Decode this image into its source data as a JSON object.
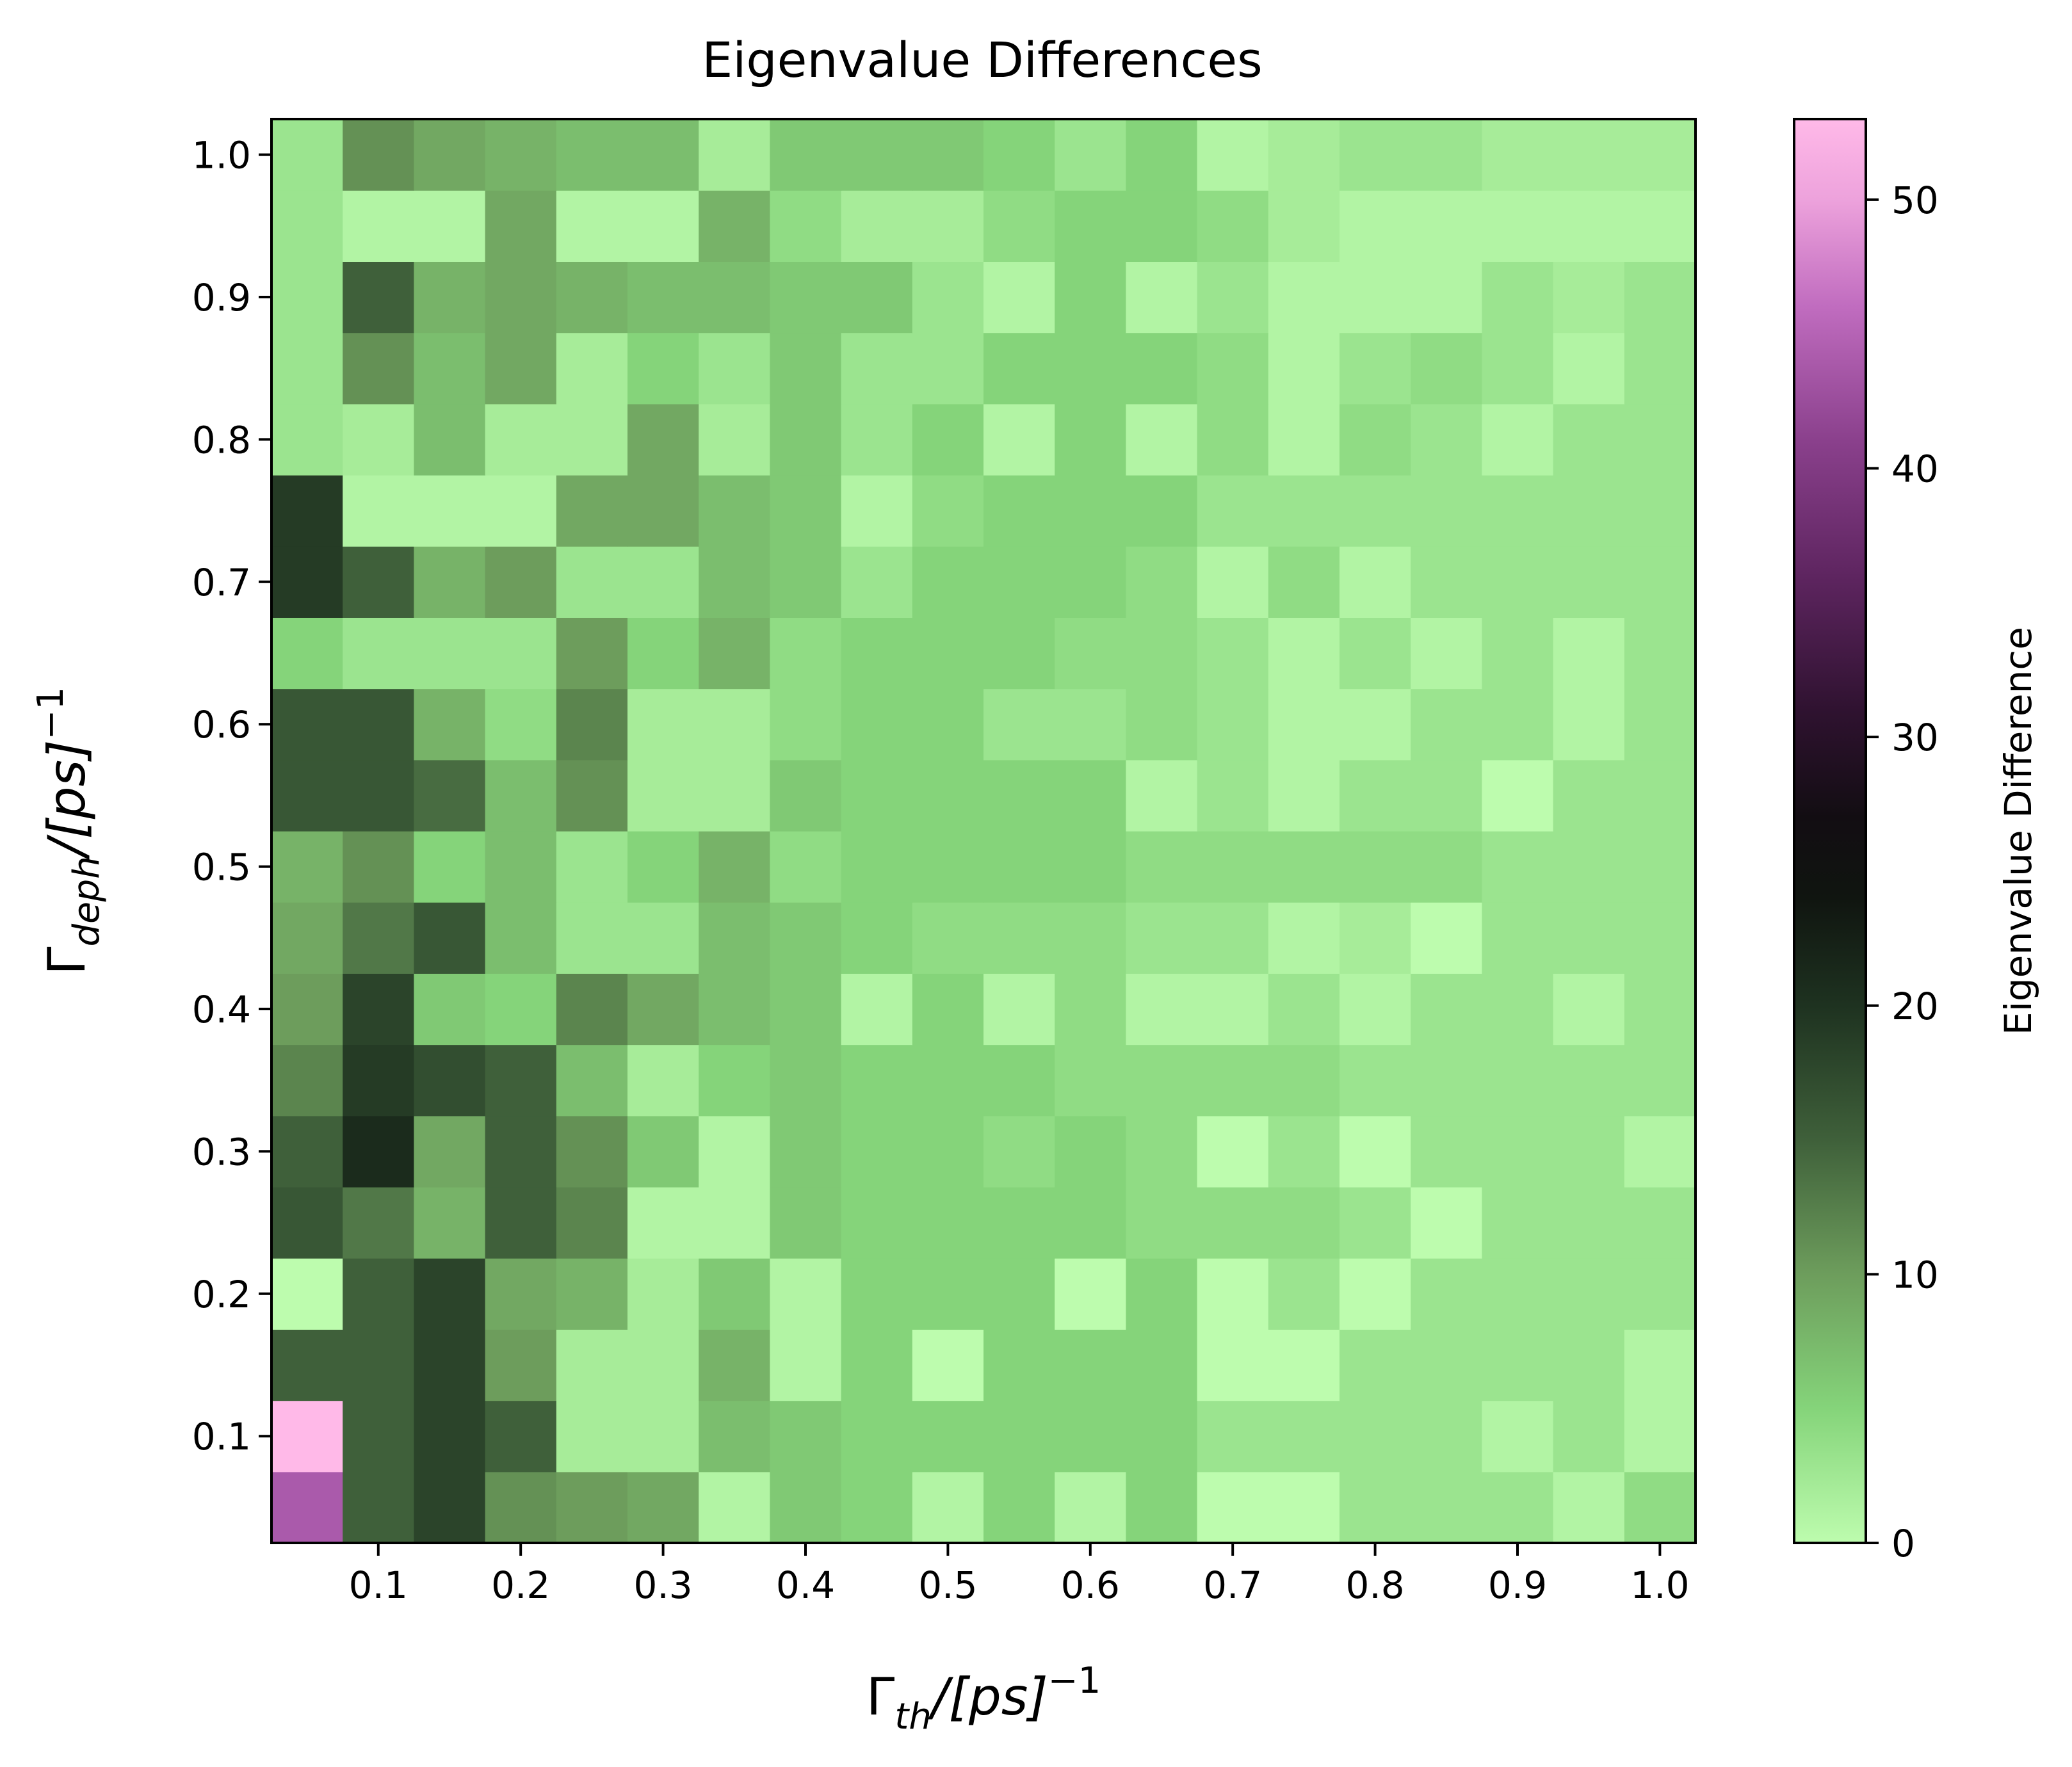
{
  "chart_data": {
    "type": "heatmap",
    "title": "Eigenvalue Differences",
    "xlabel": {
      "base": "Γ",
      "sub": "th",
      "tail": "/[ps]",
      "sup": "−1"
    },
    "ylabel": {
      "base": "Γ",
      "sub": "deph",
      "tail": "/[ps]",
      "sup": "−1"
    },
    "x_ticks": [
      "0.1",
      "0.2",
      "0.3",
      "0.4",
      "0.5",
      "0.6",
      "0.7",
      "0.8",
      "0.9",
      "1.0"
    ],
    "y_ticks": [
      "0.1",
      "0.2",
      "0.3",
      "0.4",
      "0.5",
      "0.6",
      "0.7",
      "0.8",
      "0.9",
      "1.0"
    ],
    "x_centers": [
      0.05,
      0.1,
      0.15,
      0.2,
      0.25,
      0.3,
      0.35,
      0.4,
      0.45,
      0.5,
      0.55,
      0.6,
      0.65,
      0.7,
      0.75,
      0.8,
      0.85,
      0.9,
      0.95,
      1.0
    ],
    "y_centers": [
      0.05,
      0.1,
      0.15,
      0.2,
      0.25,
      0.3,
      0.35,
      0.4,
      0.45,
      0.5,
      0.55,
      0.6,
      0.65,
      0.7,
      0.75,
      0.8,
      0.85,
      0.9,
      0.95,
      1.0
    ],
    "xlim": [
      0.025,
      1.025
    ],
    "ylim": [
      0.025,
      1.025
    ],
    "colorbar": {
      "label": "Eigenvalue Difference",
      "min": 0,
      "max": 53,
      "ticks": [
        "0",
        "10",
        "20",
        "30",
        "40",
        "50"
      ],
      "tick_values": [
        0,
        10,
        20,
        30,
        40,
        50
      ],
      "colormap_stops": [
        {
          "v": 0,
          "color": "#bdfcae"
        },
        {
          "v": 5,
          "color": "#85d47a"
        },
        {
          "v": 10,
          "color": "#6d9d5c"
        },
        {
          "v": 15,
          "color": "#3f603a"
        },
        {
          "v": 20,
          "color": "#1e3220"
        },
        {
          "v": 24,
          "color": "#101510"
        },
        {
          "v": 27,
          "color": "#120d12"
        },
        {
          "v": 31,
          "color": "#2f1230"
        },
        {
          "v": 36,
          "color": "#5e2560"
        },
        {
          "v": 41,
          "color": "#8a408c"
        },
        {
          "v": 46,
          "color": "#c06cbf"
        },
        {
          "v": 50,
          "color": "#eda2dc"
        },
        {
          "v": 53,
          "color": "#ffb9e8"
        }
      ]
    },
    "values": [
      [
        44,
        15,
        18,
        11,
        10,
        9,
        1,
        6,
        5,
        1,
        5,
        1,
        5,
        0,
        0,
        3,
        3,
        3,
        1,
        4
      ],
      [
        53,
        15,
        18,
        15,
        2,
        2,
        7,
        6,
        5,
        5,
        5,
        5,
        5,
        3,
        3,
        3,
        3,
        1,
        3,
        1
      ],
      [
        15,
        15,
        18,
        10,
        2,
        2,
        8,
        1,
        5,
        0,
        5,
        5,
        5,
        0,
        0,
        3,
        3,
        3,
        3,
        1
      ],
      [
        0,
        15,
        18,
        9,
        8,
        2,
        6,
        1,
        5,
        5,
        5,
        0,
        5,
        0,
        3,
        0,
        3,
        3,
        3,
        3
      ],
      [
        16,
        13,
        8,
        15,
        12,
        1,
        1,
        6,
        5,
        5,
        5,
        5,
        4,
        4,
        4,
        3,
        0,
        3,
        3,
        3
      ],
      [
        15,
        21,
        9,
        15,
        11,
        6,
        1,
        6,
        5,
        5,
        4,
        5,
        4,
        0,
        3,
        0,
        3,
        3,
        3,
        1
      ],
      [
        12,
        19,
        17,
        15,
        7,
        2,
        5,
        6,
        5,
        5,
        5,
        4,
        4,
        4,
        4,
        3,
        3,
        3,
        3,
        3
      ],
      [
        10,
        18,
        6,
        5,
        12,
        9,
        7,
        6,
        1,
        5,
        1,
        4,
        1,
        1,
        3,
        1,
        3,
        3,
        1,
        3
      ],
      [
        9,
        13,
        16,
        7,
        3,
        3,
        7,
        6,
        5,
        4,
        4,
        4,
        3,
        3,
        1,
        2,
        0,
        3,
        3,
        3
      ],
      [
        8,
        11,
        5,
        7,
        3,
        5,
        8,
        4,
        5,
        5,
        5,
        5,
        4,
        4,
        4,
        4,
        4,
        3,
        3,
        3
      ],
      [
        16,
        16,
        14,
        7,
        11,
        2,
        2,
        6,
        5,
        5,
        5,
        5,
        1,
        3,
        1,
        3,
        3,
        0,
        3,
        3
      ],
      [
        16,
        16,
        8,
        4,
        12,
        2,
        2,
        4,
        5,
        5,
        3,
        3,
        4,
        3,
        1,
        1,
        3,
        3,
        1,
        3
      ],
      [
        5,
        3,
        3,
        3,
        10,
        5,
        8,
        4,
        5,
        5,
        5,
        4,
        4,
        3,
        1,
        3,
        1,
        3,
        1,
        3
      ],
      [
        19,
        15,
        8,
        10,
        3,
        3,
        7,
        6,
        3,
        5,
        5,
        5,
        4,
        1,
        4,
        1,
        3,
        3,
        3,
        3
      ],
      [
        19,
        1,
        1,
        1,
        9,
        9,
        7,
        6,
        1,
        4,
        5,
        5,
        5,
        3,
        3,
        3,
        3,
        3,
        3,
        3
      ],
      [
        3,
        2,
        7,
        2,
        2,
        9,
        2,
        6,
        3,
        5,
        1,
        5,
        1,
        4,
        1,
        4,
        3,
        1,
        3,
        3
      ],
      [
        3,
        11,
        7,
        9,
        2,
        5,
        3,
        6,
        3,
        3,
        5,
        5,
        5,
        4,
        1,
        3,
        4,
        3,
        1,
        3
      ],
      [
        3,
        15,
        8,
        9,
        8,
        7,
        7,
        6,
        6,
        3,
        1,
        5,
        1,
        3,
        1,
        1,
        1,
        3,
        2,
        3
      ],
      [
        3,
        1,
        1,
        9,
        1,
        1,
        8,
        4,
        2,
        2,
        4,
        5,
        5,
        4,
        2,
        1,
        1,
        1,
        1,
        1
      ],
      [
        3,
        11,
        9,
        8,
        7,
        7,
        2,
        6,
        6,
        6,
        5,
        3,
        5,
        1,
        2,
        3,
        3,
        2,
        2,
        2
      ]
    ]
  }
}
